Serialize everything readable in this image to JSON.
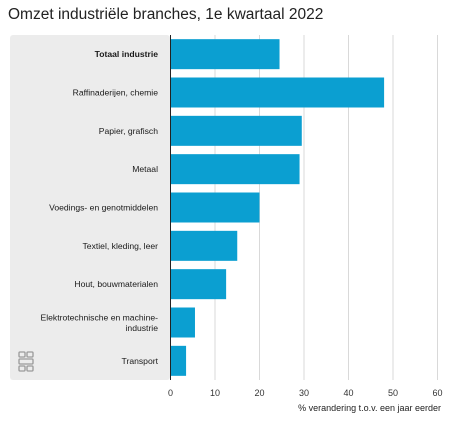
{
  "chart_data": {
    "type": "bar",
    "orientation": "horizontal",
    "title": "Omzet industriële branches, 1e kwartaal 2022",
    "xlabel": "% verandering t.o.v. een jaar eerder",
    "ylabel": "",
    "xlim": [
      0,
      60
    ],
    "xticks": [
      0,
      10,
      20,
      30,
      40,
      50,
      60
    ],
    "grid": true,
    "legend": "none",
    "bar_color": "#0b9fd1",
    "highlight_color": "#ececec",
    "categories": [
      "Totaal industrie",
      "Raffinaderijen, chemie",
      "Papier, grafisch",
      "Metaal",
      "Voedings- en genotmiddelen",
      "Textiel, kleding, leer",
      "Hout, bouwmaterialen",
      "Elektrotechnische en machine-industrie",
      "Transport"
    ],
    "category_lines": [
      [
        "Totaal industrie"
      ],
      [
        "Raffinaderijen, chemie"
      ],
      [
        "Papier, grafisch"
      ],
      [
        "Metaal"
      ],
      [
        "Voedings- en genotmiddelen"
      ],
      [
        "Textiel, kleding, leer"
      ],
      [
        "Hout, bouwmaterialen"
      ],
      [
        "Elektrotechnische en machine-",
        "industrie"
      ],
      [
        "Transport"
      ]
    ],
    "bold_categories": [
      0
    ],
    "values": [
      24.5,
      48,
      29.5,
      29,
      20,
      15,
      12.5,
      5.5,
      3.5
    ]
  },
  "icons": {
    "logo": "cbs-logo-icon"
  }
}
